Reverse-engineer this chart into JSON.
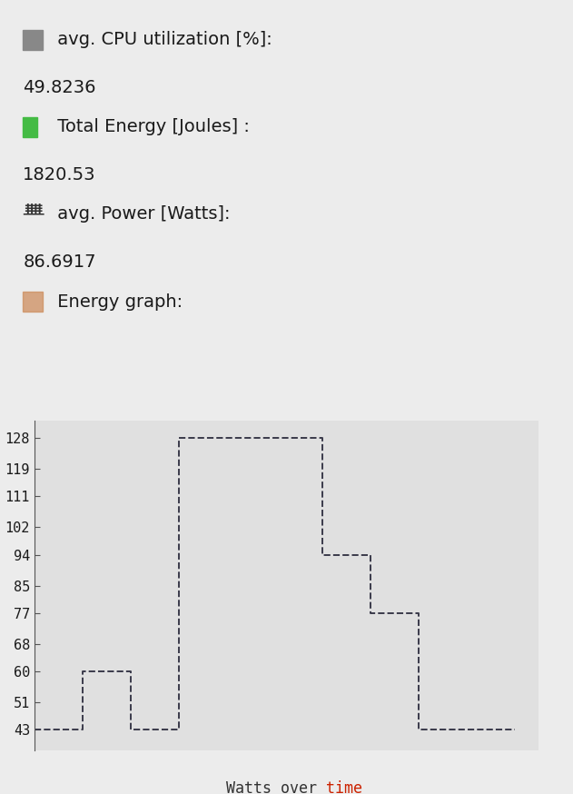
{
  "page_bg": "#ececec",
  "chart_bg": "#e0e0e0",
  "text_color": "#1a1a1a",
  "line_color": "#3a3a4a",
  "xlabel_black": "Watts over ",
  "xlabel_red": "time",
  "xlabel_red_color": "#cc2200",
  "font_family": "DejaVu Sans",
  "mono_family": "DejaVu Sans Mono",
  "label_fontsize": 14,
  "value_fontsize": 14,
  "ytick_fontsize": 11,
  "xlabel_fontsize": 12,
  "yticks": [
    43,
    51,
    60,
    68,
    77,
    85,
    94,
    102,
    111,
    119,
    128
  ],
  "ylim": [
    37,
    133
  ],
  "xlim": [
    0,
    21
  ],
  "step_x": [
    0,
    1,
    2,
    3,
    4,
    5,
    6,
    11,
    12,
    13,
    14,
    15,
    16,
    17,
    20
  ],
  "step_y": [
    43,
    43,
    60,
    60,
    43,
    43,
    128,
    128,
    94,
    94,
    77,
    77,
    43,
    43,
    43
  ],
  "line_style": "--",
  "line_width": 1.4,
  "icon_cpu": "█",
  "icon_battery": "█",
  "icon_plug": "█",
  "icon_chart": "█",
  "cpu_label": " avg. CPU utilization [%]:",
  "cpu_value": "49.8236",
  "energy_label": " Total Energy [Joules] :",
  "energy_value": "1820.53",
  "power_label": " avg. Power [Watts]:",
  "power_value": "86.6917",
  "graph_label": " Energy graph:",
  "cpu_icon_color": "#666666",
  "energy_icon_color": "#44aa44",
  "power_icon_color": "#333333",
  "graph_icon_color": "#996644"
}
